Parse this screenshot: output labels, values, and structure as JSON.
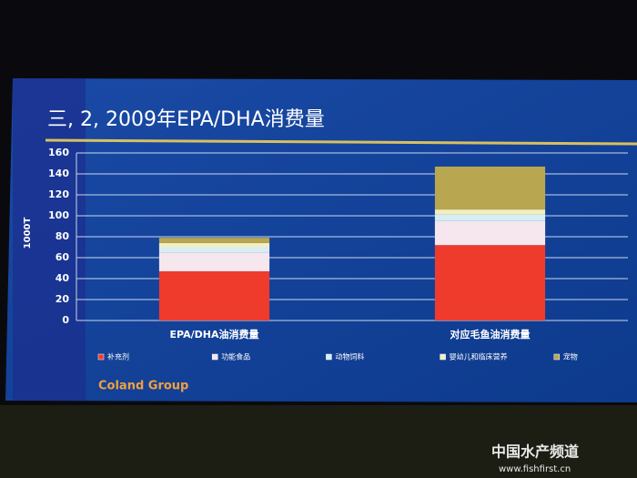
{
  "chart_data": {
    "type": "stacked_bar",
    "title": "三, 2, 2009年EPA/DHA消费量",
    "y_label": "1000T",
    "categories": [
      "EPA/DHA油消费量",
      "对应毛鱼油消费量"
    ],
    "series": [
      {
        "name": "补充剂",
        "color": "#ee3b2c",
        "values": [
          47,
          72
        ]
      },
      {
        "name": "功能食品",
        "color": "#f6e6ee",
        "values": [
          18,
          23
        ]
      },
      {
        "name": "动物饲料",
        "color": "#d6eef4",
        "values": [
          5,
          6
        ]
      },
      {
        "name": "婴幼儿和临床营养",
        "color": "#f2eec0",
        "values": [
          4,
          5
        ]
      },
      {
        "name": "宠物",
        "color": "#b8a650",
        "values": [
          5,
          41
        ]
      }
    ],
    "ylim": [
      0,
      160
    ],
    "yticks": [
      0,
      20,
      40,
      60,
      80,
      100,
      120,
      140,
      160
    ],
    "grid": true,
    "legend": "bottom"
  },
  "footer": "Coland Group",
  "watermark": {
    "name": "中国水产频道",
    "url": "www.fishfirst.cn"
  }
}
